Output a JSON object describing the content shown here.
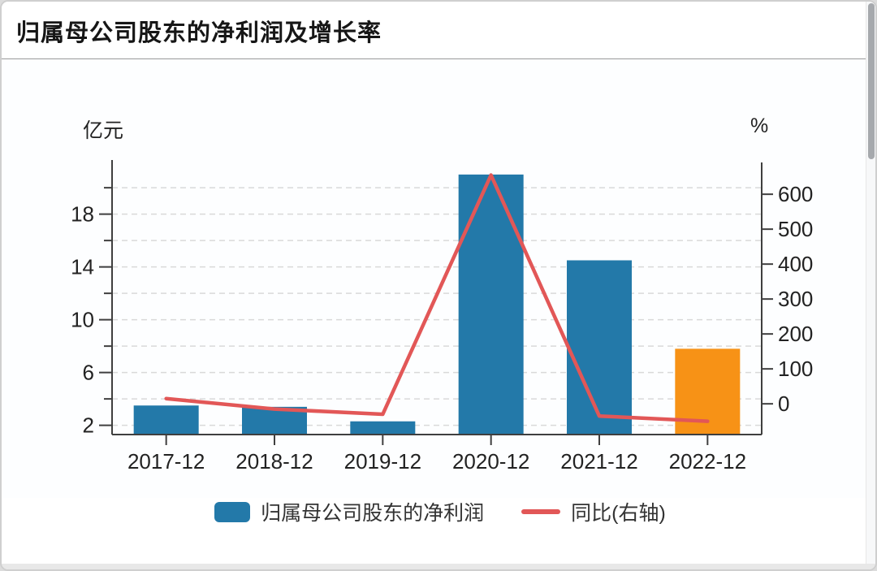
{
  "header": {
    "title": "归属母公司股东的净利润及增长率"
  },
  "colors": {
    "bar_blue": "#2379a9",
    "bar_orange": "#f79216",
    "line_red": "#e25757",
    "axis": "#3f3f3f",
    "grid": "#d9d9d9",
    "text": "#222222",
    "divider": "#9a9a9a",
    "scrollbar_thumb": "#a6a9ad",
    "bottom_strip": "#e8e8e8"
  },
  "chart_data": {
    "type": "bar+line",
    "title": "归属母公司股东的净利润及增长率",
    "categories": [
      "2017-12",
      "2018-12",
      "2019-12",
      "2020-12",
      "2021-12",
      "2022-12"
    ],
    "series": [
      {
        "name": "归属母公司股东的净利润",
        "type": "bar",
        "axis": "left",
        "unit": "亿元",
        "values": [
          3.5,
          3.4,
          2.3,
          21.0,
          14.5,
          7.8
        ],
        "point_colors": [
          "#2379a9",
          "#2379a9",
          "#2379a9",
          "#2379a9",
          "#2379a9",
          "#f79216"
        ]
      },
      {
        "name": "同比(右轴)",
        "type": "line",
        "axis": "right",
        "unit": "%",
        "values": [
          15,
          -15,
          -30,
          655,
          -35,
          -50
        ],
        "color": "#e25757"
      }
    ],
    "left_axis": {
      "label": "亿元",
      "tick_labels": [
        2,
        6,
        10,
        14,
        18
      ],
      "minor_ticks": [
        4,
        8,
        12,
        16,
        20
      ],
      "min": 1.3,
      "max": 22.1
    },
    "right_axis": {
      "label": "%",
      "tick_labels": [
        0,
        100,
        200,
        300,
        400,
        500,
        600
      ],
      "min": -88,
      "max": 698
    },
    "legend": [
      {
        "label": "归属母公司股东的净利润",
        "swatch": "bar"
      },
      {
        "label": "同比(右轴)",
        "swatch": "line"
      }
    ],
    "grid": true,
    "legend_position": "bottom"
  }
}
